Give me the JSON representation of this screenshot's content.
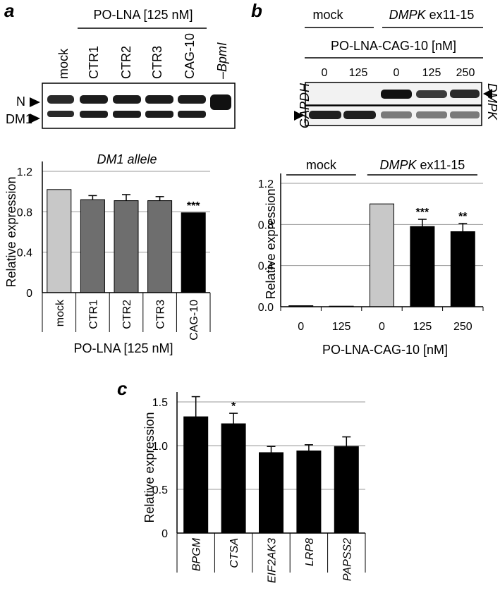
{
  "panels": {
    "a": "a",
    "b": "b",
    "c": "c"
  },
  "gel_a": {
    "header": "PO-LNA [125 nM]",
    "lanes": [
      "mock",
      "CTR1",
      "CTR2",
      "CTR3",
      "CAG-10",
      "–BpmI"
    ],
    "band_labels": [
      "N",
      "DM1"
    ]
  },
  "gel_b": {
    "group_labels": [
      {
        "italic": "",
        "plain": "mock"
      },
      {
        "italic": "DMPK",
        "plain": " ex11-15"
      }
    ],
    "header": "PO-LNA-CAG-10 [nM]",
    "lanes": [
      "0",
      "125",
      "0",
      "125",
      "250"
    ],
    "left_label": "GAPDH",
    "right_label": "DMPK"
  },
  "chart_data": [
    {
      "type": "bar",
      "title": "DM1 allele",
      "categories": [
        "mock",
        "CTR1",
        "CTR2",
        "CTR3",
        "CAG-10"
      ],
      "values": [
        1.02,
        0.92,
        0.91,
        0.91,
        0.79
      ],
      "errors": [
        0.0,
        0.04,
        0.06,
        0.04,
        0.0
      ],
      "colors": [
        "#c8c8c8",
        "#6e6e6e",
        "#6e6e6e",
        "#6e6e6e",
        "#000000"
      ],
      "significance": [
        "",
        "",
        "",
        "",
        "***"
      ],
      "ylabel": "Relative expression",
      "xlabel": "PO-LNA [125 nM]",
      "ylim": [
        0,
        1.2
      ],
      "yticks": [
        "0",
        "0.4",
        "0.8",
        "1.2"
      ],
      "grid": true
    },
    {
      "type": "bar",
      "group_labels": [
        {
          "italic": "",
          "plain": "mock"
        },
        {
          "italic": "DMPK",
          "plain": " ex11-15"
        }
      ],
      "categories": [
        "0",
        "125",
        "0",
        "125",
        "250"
      ],
      "values": [
        0.01,
        0.005,
        1.0,
        0.78,
        0.73
      ],
      "errors": [
        0.0,
        0.0,
        0.0,
        0.07,
        0.08
      ],
      "colors": [
        "#000000",
        "#000000",
        "#c8c8c8",
        "#000000",
        "#000000"
      ],
      "significance": [
        "",
        "",
        "",
        "***",
        "**"
      ],
      "ylabel": "Relative expression",
      "xlabel": "PO-LNA-CAG-10 [nM]",
      "ylim": [
        0,
        1.2
      ],
      "yticks": [
        "0.0",
        "0.4",
        "0.8",
        "1.2"
      ],
      "grid": true
    },
    {
      "type": "bar",
      "categories": [
        "BPGM",
        "CTSA",
        "EIF2AK3",
        "LRP8",
        "PAPSS2"
      ],
      "values": [
        1.33,
        1.25,
        0.92,
        0.94,
        0.99
      ],
      "errors": [
        0.23,
        0.12,
        0.07,
        0.07,
        0.11
      ],
      "colors": [
        "#000000",
        "#000000",
        "#000000",
        "#000000",
        "#000000"
      ],
      "significance": [
        "",
        "*",
        "",
        "",
        ""
      ],
      "ylabel": "Relative  expression",
      "ylim": [
        0,
        1.5
      ],
      "yticks": [
        "0",
        "0.5",
        "1.0",
        "1.5"
      ],
      "grid": true
    }
  ]
}
